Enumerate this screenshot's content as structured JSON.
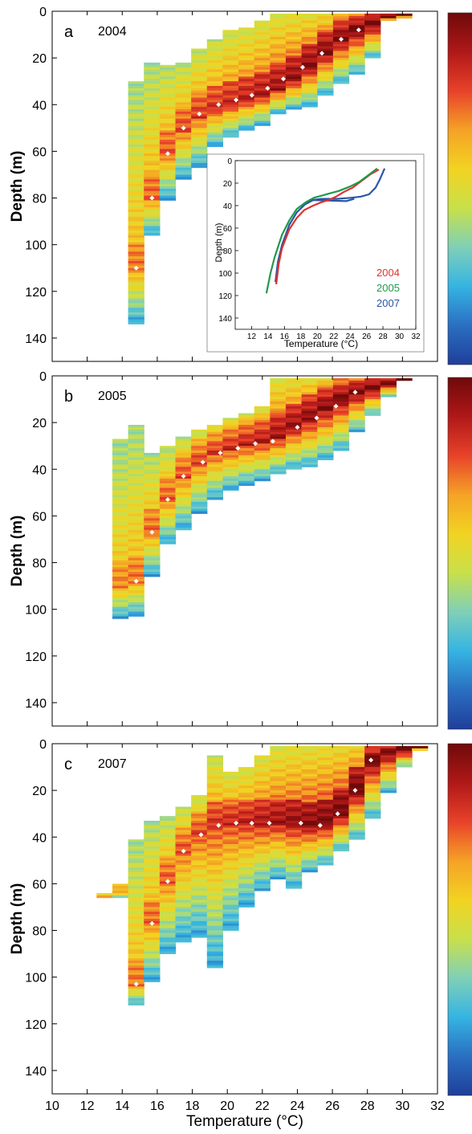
{
  "figure": {
    "xlabel": "Temperature (°C)",
    "ylabel": "Depth (m)"
  },
  "colors": {
    "ramp": [
      "#1f3f9a",
      "#2a6fc2",
      "#35b4e2",
      "#7fd0b8",
      "#c8e04a",
      "#f2d321",
      "#f5a226",
      "#e8422a",
      "#b01818",
      "#6f0a0a"
    ],
    "mean_marker": "#ffffff",
    "axis": "#000000",
    "inset_2004": "#e0322f",
    "inset_2005": "#1f9a4a",
    "inset_2007": "#2a55a8"
  },
  "chart_data": [
    {
      "type": "heatmap",
      "panel": "a",
      "label": "2004",
      "xlabel": "",
      "ylabel": "Depth (m)",
      "xlim": [
        10,
        32
      ],
      "ylim": [
        150,
        0
      ],
      "yticks": [
        0,
        20,
        40,
        60,
        80,
        100,
        120,
        140
      ],
      "xticks": [
        10,
        12,
        14,
        16,
        18,
        20,
        22,
        24,
        26,
        28,
        30,
        32
      ],
      "show_xtick_labels": false,
      "columns": [
        {
          "t": 14.8,
          "top": 30,
          "bottom": 134,
          "peak": 110
        },
        {
          "t": 15.7,
          "top": 22,
          "bottom": 96,
          "peak": 80
        },
        {
          "t": 16.6,
          "top": 23,
          "bottom": 81,
          "peak": 61
        },
        {
          "t": 17.5,
          "top": 22,
          "bottom": 72,
          "peak": 51
        },
        {
          "t": 18.4,
          "top": 16,
          "bottom": 67,
          "peak": 45
        },
        {
          "t": 19.3,
          "top": 12,
          "bottom": 58,
          "peak": 42
        },
        {
          "t": 20.2,
          "top": 8,
          "bottom": 54,
          "peak": 40
        },
        {
          "t": 21.1,
          "top": 7,
          "bottom": 51,
          "peak": 38
        },
        {
          "t": 22.0,
          "top": 4,
          "bottom": 49,
          "peak": 36
        },
        {
          "t": 22.9,
          "top": 1,
          "bottom": 44,
          "peak": 33
        },
        {
          "t": 23.8,
          "top": 1,
          "bottom": 42,
          "peak": 29
        },
        {
          "t": 24.7,
          "top": 1,
          "bottom": 41,
          "peak": 24
        },
        {
          "t": 25.6,
          "top": 1,
          "bottom": 36,
          "peak": 18
        },
        {
          "t": 26.5,
          "top": 1,
          "bottom": 31,
          "peak": 12
        },
        {
          "t": 27.4,
          "top": 1,
          "bottom": 27,
          "peak": 8
        },
        {
          "t": 28.3,
          "top": 1,
          "bottom": 20,
          "peak": 5
        },
        {
          "t": 29.2,
          "top": 1,
          "bottom": 4,
          "peak": 2
        },
        {
          "t": 30.1,
          "top": 1,
          "bottom": 3,
          "peak": 1
        }
      ],
      "mean_points": [
        [
          14.8,
          110
        ],
        [
          15.7,
          80
        ],
        [
          16.6,
          61
        ],
        [
          17.5,
          50
        ],
        [
          18.4,
          44
        ],
        [
          19.5,
          40
        ],
        [
          20.5,
          38
        ],
        [
          21.4,
          36
        ],
        [
          22.3,
          33
        ],
        [
          23.2,
          29
        ],
        [
          24.3,
          24
        ],
        [
          25.4,
          18
        ],
        [
          26.5,
          12
        ],
        [
          27.5,
          8
        ]
      ]
    },
    {
      "type": "heatmap",
      "panel": "b",
      "label": "2005",
      "xlabel": "",
      "ylabel": "Depth (m)",
      "xlim": [
        10,
        32
      ],
      "ylim": [
        150,
        0
      ],
      "yticks": [
        0,
        20,
        40,
        60,
        80,
        100,
        120,
        140
      ],
      "xticks": [
        10,
        12,
        14,
        16,
        18,
        20,
        22,
        24,
        26,
        28,
        30,
        32
      ],
      "show_xtick_labels": false,
      "columns": [
        {
          "t": 13.9,
          "top": 27,
          "bottom": 104,
          "peak": 90
        },
        {
          "t": 14.8,
          "top": 21,
          "bottom": 103,
          "peak": 88
        },
        {
          "t": 15.7,
          "top": 33,
          "bottom": 86,
          "peak": 67
        },
        {
          "t": 16.6,
          "top": 30,
          "bottom": 72,
          "peak": 53
        },
        {
          "t": 17.5,
          "top": 26,
          "bottom": 66,
          "peak": 43
        },
        {
          "t": 18.4,
          "top": 23,
          "bottom": 59,
          "peak": 37
        },
        {
          "t": 19.3,
          "top": 21,
          "bottom": 53,
          "peak": 33
        },
        {
          "t": 20.2,
          "top": 18,
          "bottom": 49,
          "peak": 31
        },
        {
          "t": 21.1,
          "top": 16,
          "bottom": 47,
          "peak": 29
        },
        {
          "t": 22.0,
          "top": 13,
          "bottom": 45,
          "peak": 28
        },
        {
          "t": 22.9,
          "top": 1,
          "bottom": 42,
          "peak": 26
        },
        {
          "t": 23.8,
          "top": 1,
          "bottom": 40,
          "peak": 22
        },
        {
          "t": 24.7,
          "top": 1,
          "bottom": 39,
          "peak": 18
        },
        {
          "t": 25.6,
          "top": 1,
          "bottom": 36,
          "peak": 14
        },
        {
          "t": 26.5,
          "top": 1,
          "bottom": 32,
          "peak": 10
        },
        {
          "t": 27.4,
          "top": 1,
          "bottom": 24,
          "peak": 7
        },
        {
          "t": 28.3,
          "top": 1,
          "bottom": 17,
          "peak": 5
        },
        {
          "t": 29.2,
          "top": 1,
          "bottom": 9,
          "peak": 3
        },
        {
          "t": 30.1,
          "top": 1,
          "bottom": 2,
          "peak": 1
        }
      ],
      "mean_points": [
        [
          14.8,
          88
        ],
        [
          15.7,
          67
        ],
        [
          16.6,
          53
        ],
        [
          17.5,
          43
        ],
        [
          18.6,
          37
        ],
        [
          19.6,
          33
        ],
        [
          20.6,
          31
        ],
        [
          21.6,
          29
        ],
        [
          22.6,
          28
        ],
        [
          24.0,
          22
        ],
        [
          25.1,
          18
        ],
        [
          26.2,
          13
        ],
        [
          27.3,
          7
        ]
      ]
    },
    {
      "type": "heatmap",
      "panel": "c",
      "label": "2007",
      "xlabel": "Temperature (°C)",
      "ylabel": "Depth (m)",
      "xlim": [
        10,
        32
      ],
      "ylim": [
        150,
        0
      ],
      "yticks": [
        0,
        20,
        40,
        60,
        80,
        100,
        120,
        140
      ],
      "xticks": [
        10,
        12,
        14,
        16,
        18,
        20,
        22,
        24,
        26,
        28,
        30,
        32
      ],
      "show_xtick_labels": true,
      "columns": [
        {
          "t": 13.0,
          "top": 64,
          "bottom": 66,
          "peak": 65
        },
        {
          "t": 13.9,
          "top": 60,
          "bottom": 66,
          "peak": 63
        },
        {
          "t": 14.8,
          "top": 41,
          "bottom": 112,
          "peak": 103
        },
        {
          "t": 15.7,
          "top": 33,
          "bottom": 102,
          "peak": 77
        },
        {
          "t": 16.6,
          "top": 31,
          "bottom": 90,
          "peak": 59
        },
        {
          "t": 17.5,
          "top": 27,
          "bottom": 85,
          "peak": 46
        },
        {
          "t": 18.4,
          "top": 22,
          "bottom": 83,
          "peak": 39
        },
        {
          "t": 19.3,
          "top": 5,
          "bottom": 96,
          "peak": 35
        },
        {
          "t": 20.2,
          "top": 12,
          "bottom": 80,
          "peak": 34
        },
        {
          "t": 21.1,
          "top": 10,
          "bottom": 70,
          "peak": 34
        },
        {
          "t": 22.0,
          "top": 5,
          "bottom": 63,
          "peak": 34
        },
        {
          "t": 22.9,
          "top": 1,
          "bottom": 58,
          "peak": 34
        },
        {
          "t": 23.8,
          "top": 1,
          "bottom": 62,
          "peak": 34
        },
        {
          "t": 24.7,
          "top": 1,
          "bottom": 55,
          "peak": 35
        },
        {
          "t": 25.6,
          "top": 1,
          "bottom": 52,
          "peak": 34
        },
        {
          "t": 26.5,
          "top": 1,
          "bottom": 46,
          "peak": 30
        },
        {
          "t": 27.4,
          "top": 1,
          "bottom": 41,
          "peak": 20
        },
        {
          "t": 28.3,
          "top": 1,
          "bottom": 32,
          "peak": 7
        },
        {
          "t": 29.2,
          "top": 1,
          "bottom": 21,
          "peak": 3
        },
        {
          "t": 30.1,
          "top": 1,
          "bottom": 10,
          "peak": 2
        },
        {
          "t": 31.0,
          "top": 1,
          "bottom": 3,
          "peak": 1
        }
      ],
      "mean_points": [
        [
          14.8,
          103
        ],
        [
          15.7,
          77
        ],
        [
          16.6,
          59
        ],
        [
          17.5,
          46
        ],
        [
          18.5,
          39
        ],
        [
          19.5,
          35
        ],
        [
          20.5,
          34
        ],
        [
          21.4,
          34
        ],
        [
          22.4,
          34
        ],
        [
          24.2,
          34
        ],
        [
          25.3,
          35
        ],
        [
          26.3,
          30
        ],
        [
          27.3,
          20
        ],
        [
          28.2,
          7
        ]
      ]
    },
    {
      "type": "line",
      "panel": "inset",
      "xlabel": "Temperature (°C)",
      "ylabel": "Depth (m)",
      "xlim": [
        10,
        32
      ],
      "ylim": [
        150,
        0
      ],
      "xticks": [
        12,
        14,
        16,
        18,
        20,
        22,
        24,
        26,
        28,
        30,
        32
      ],
      "yticks": [
        0,
        20,
        40,
        60,
        80,
        100,
        120,
        140
      ],
      "series": [
        {
          "name": "2004",
          "points": [
            [
              27.5,
              8
            ],
            [
              26.5,
              12
            ],
            [
              25.4,
              18
            ],
            [
              24.3,
              24
            ],
            [
              23.2,
              28
            ],
            [
              22.3,
              32
            ],
            [
              21.4,
              35
            ],
            [
              20.5,
              37
            ],
            [
              19.5,
              40
            ],
            [
              18.4,
              44
            ],
            [
              17.5,
              51
            ],
            [
              16.6,
              61
            ],
            [
              15.7,
              78
            ],
            [
              15.3,
              92
            ],
            [
              15.0,
              110
            ]
          ]
        },
        {
          "name": "2005",
          "points": [
            [
              27.3,
              7
            ],
            [
              26.2,
              13
            ],
            [
              25.1,
              19
            ],
            [
              24.0,
              23
            ],
            [
              22.6,
              27
            ],
            [
              21.6,
              29
            ],
            [
              20.6,
              31
            ],
            [
              19.6,
              33
            ],
            [
              18.6,
              37
            ],
            [
              17.5,
              43
            ],
            [
              16.6,
              53
            ],
            [
              15.7,
              66
            ],
            [
              14.8,
              86
            ],
            [
              14.3,
              100
            ],
            [
              13.8,
              118
            ]
          ]
        },
        {
          "name": "2007",
          "points": [
            [
              28.2,
              7
            ],
            [
              27.6,
              17
            ],
            [
              27.1,
              24
            ],
            [
              26.3,
              30
            ],
            [
              25.3,
              32
            ],
            [
              24.2,
              33
            ],
            [
              22.4,
              34
            ],
            [
              21.4,
              34
            ],
            [
              20.5,
              34
            ],
            [
              19.5,
              35
            ],
            [
              18.5,
              39
            ],
            [
              17.5,
              46
            ],
            [
              16.6,
              57
            ],
            [
              15.7,
              75
            ],
            [
              15.2,
              90
            ],
            [
              14.9,
              108
            ]
          ]
        },
        {
          "name": "",
          "points": [
            [
              19.0,
              35
            ],
            [
              23.5,
              36
            ],
            [
              24.5,
              34
            ]
          ]
        }
      ]
    }
  ]
}
